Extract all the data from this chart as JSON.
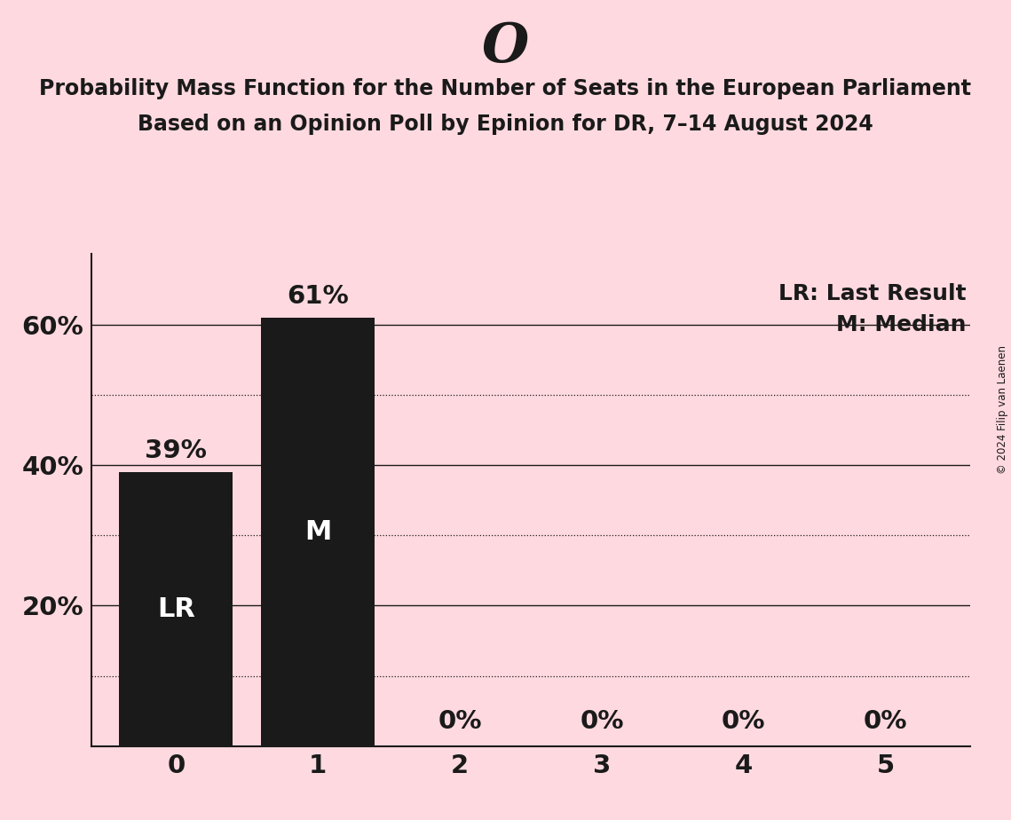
{
  "title": "O",
  "subtitle_line1": "Probability Mass Function for the Number of Seats in the European Parliament",
  "subtitle_line2": "Based on an Opinion Poll by Epinion for DR, 7–14 August 2024",
  "categories": [
    0,
    1,
    2,
    3,
    4,
    5
  ],
  "values": [
    0.39,
    0.61,
    0.0,
    0.0,
    0.0,
    0.0
  ],
  "bar_color": "#1a1a1a",
  "background_color": "#ffd9e0",
  "bar_labels": [
    "LR",
    "M",
    "",
    "",
    "",
    ""
  ],
  "bar_label_color": "#ffffff",
  "value_labels": [
    "39%",
    "61%",
    "0%",
    "0%",
    "0%",
    "0%"
  ],
  "ylim": [
    0,
    0.7
  ],
  "yticks": [
    0.0,
    0.2,
    0.4,
    0.6
  ],
  "yticklabels": [
    "",
    "20%",
    "40%",
    "60%"
  ],
  "solid_grid_lines": [
    0.2,
    0.4,
    0.6
  ],
  "dotted_grid_lines": [
    0.1,
    0.3,
    0.5
  ],
  "legend_lr_text": "LR: Last Result",
  "legend_m_text": "M: Median",
  "copyright_text": "© 2024 Filip van Laenen",
  "title_fontsize": 44,
  "subtitle_fontsize": 17,
  "axis_tick_fontsize": 21,
  "bar_label_fontsize": 22,
  "value_label_fontsize": 21,
  "legend_fontsize": 18
}
